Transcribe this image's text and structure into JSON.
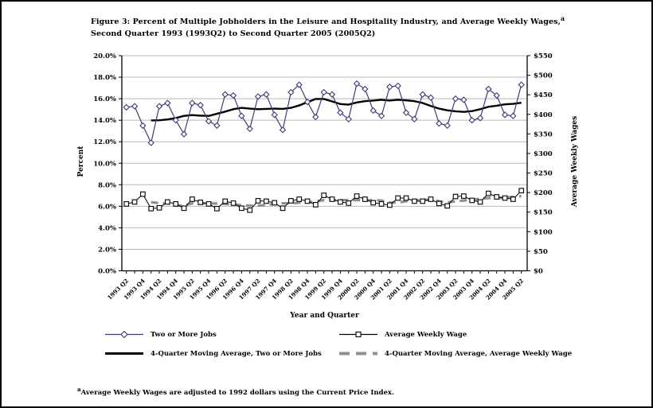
{
  "figure": {
    "title_line1": "Figure 3: Percent of Multiple Jobholders in the Leisure and Hospitality Industry, and Average Weekly Wages,",
    "title_superscript": "a",
    "title_line2": "Second Quarter 1993 (1993Q2) to Second Quarter 2005 (2005Q2)",
    "footnote_superscript": "a",
    "footnote_text": "Average Weekly Wages are adjusted to 1992 dollars using the Current Price Index."
  },
  "chart_data": {
    "type": "line",
    "x_axis": {
      "title": "Year and Quarter",
      "tick_labels": [
        "1993 Q2",
        "1993 Q4",
        "1994 Q2",
        "1994 Q4",
        "1995 Q2",
        "1995 Q4",
        "1996 Q2",
        "1996 Q4",
        "1997 Q2",
        "1997 Q4",
        "1998 Q2",
        "1998 Q4",
        "1999 Q2",
        "1999 Q4",
        "2000 Q2",
        "2000 Q4",
        "2001 Q2",
        "2001 Q4",
        "2002 Q2",
        "2002 Q4",
        "2003 Q2",
        "2003 Q4",
        "2004 Q2",
        "2004 Q4",
        "2005 Q2"
      ]
    },
    "y_axis_left": {
      "title": "Percent",
      "min": 0,
      "max": 20,
      "step": 2,
      "format": "percent"
    },
    "y_axis_right": {
      "title": "Average Weekly Wages",
      "min": 0,
      "max": 550,
      "step": 50,
      "format": "dollar"
    },
    "grid": "horizontal-only",
    "legend_position": "bottom-two-columns",
    "series": [
      {
        "name": "Two or More Jobs",
        "axis": "left",
        "marker": "diamond",
        "color": "#3d3d7a",
        "values": [
          15.2,
          15.3,
          13.5,
          11.9,
          15.3,
          15.6,
          14.0,
          12.7,
          15.6,
          15.4,
          13.9,
          13.5,
          16.4,
          16.3,
          14.4,
          13.2,
          16.2,
          16.4,
          14.5,
          13.1,
          16.6,
          17.3,
          15.7,
          14.3,
          16.6,
          16.4,
          14.7,
          14.1,
          17.4,
          16.9,
          14.9,
          14.4,
          17.1,
          17.2,
          14.7,
          14.1,
          16.4,
          16.1,
          13.7,
          13.5,
          16.0,
          15.9,
          14.0,
          14.2,
          16.9,
          16.3,
          14.5,
          14.4,
          17.3
        ]
      },
      {
        "name": "Average Weekly Wage",
        "axis": "right",
        "marker": "square",
        "color": "#000000",
        "values": [
          171,
          176,
          196,
          159,
          161,
          176,
          171,
          160,
          183,
          175,
          171,
          159,
          178,
          173,
          160,
          155,
          179,
          178,
          174,
          160,
          179,
          183,
          178,
          169,
          193,
          183,
          176,
          173,
          191,
          183,
          174,
          171,
          168,
          186,
          186,
          178,
          178,
          183,
          172,
          166,
          190,
          191,
          180,
          176,
          198,
          189,
          186,
          183,
          205
        ]
      },
      {
        "name": "4-Quarter Moving Average, Two or More Jobs",
        "axis": "left",
        "marker": "none",
        "style": "thick-solid",
        "color": "#000000",
        "derived_from": "Two or More Jobs",
        "window": 4
      },
      {
        "name": "4-Quarter Moving Average, Average Weekly Wage",
        "axis": "right",
        "marker": "none",
        "style": "thick-dashed",
        "color": "#8f8f8f",
        "derived_from": "Average Weekly Wage",
        "window": 4
      }
    ]
  }
}
